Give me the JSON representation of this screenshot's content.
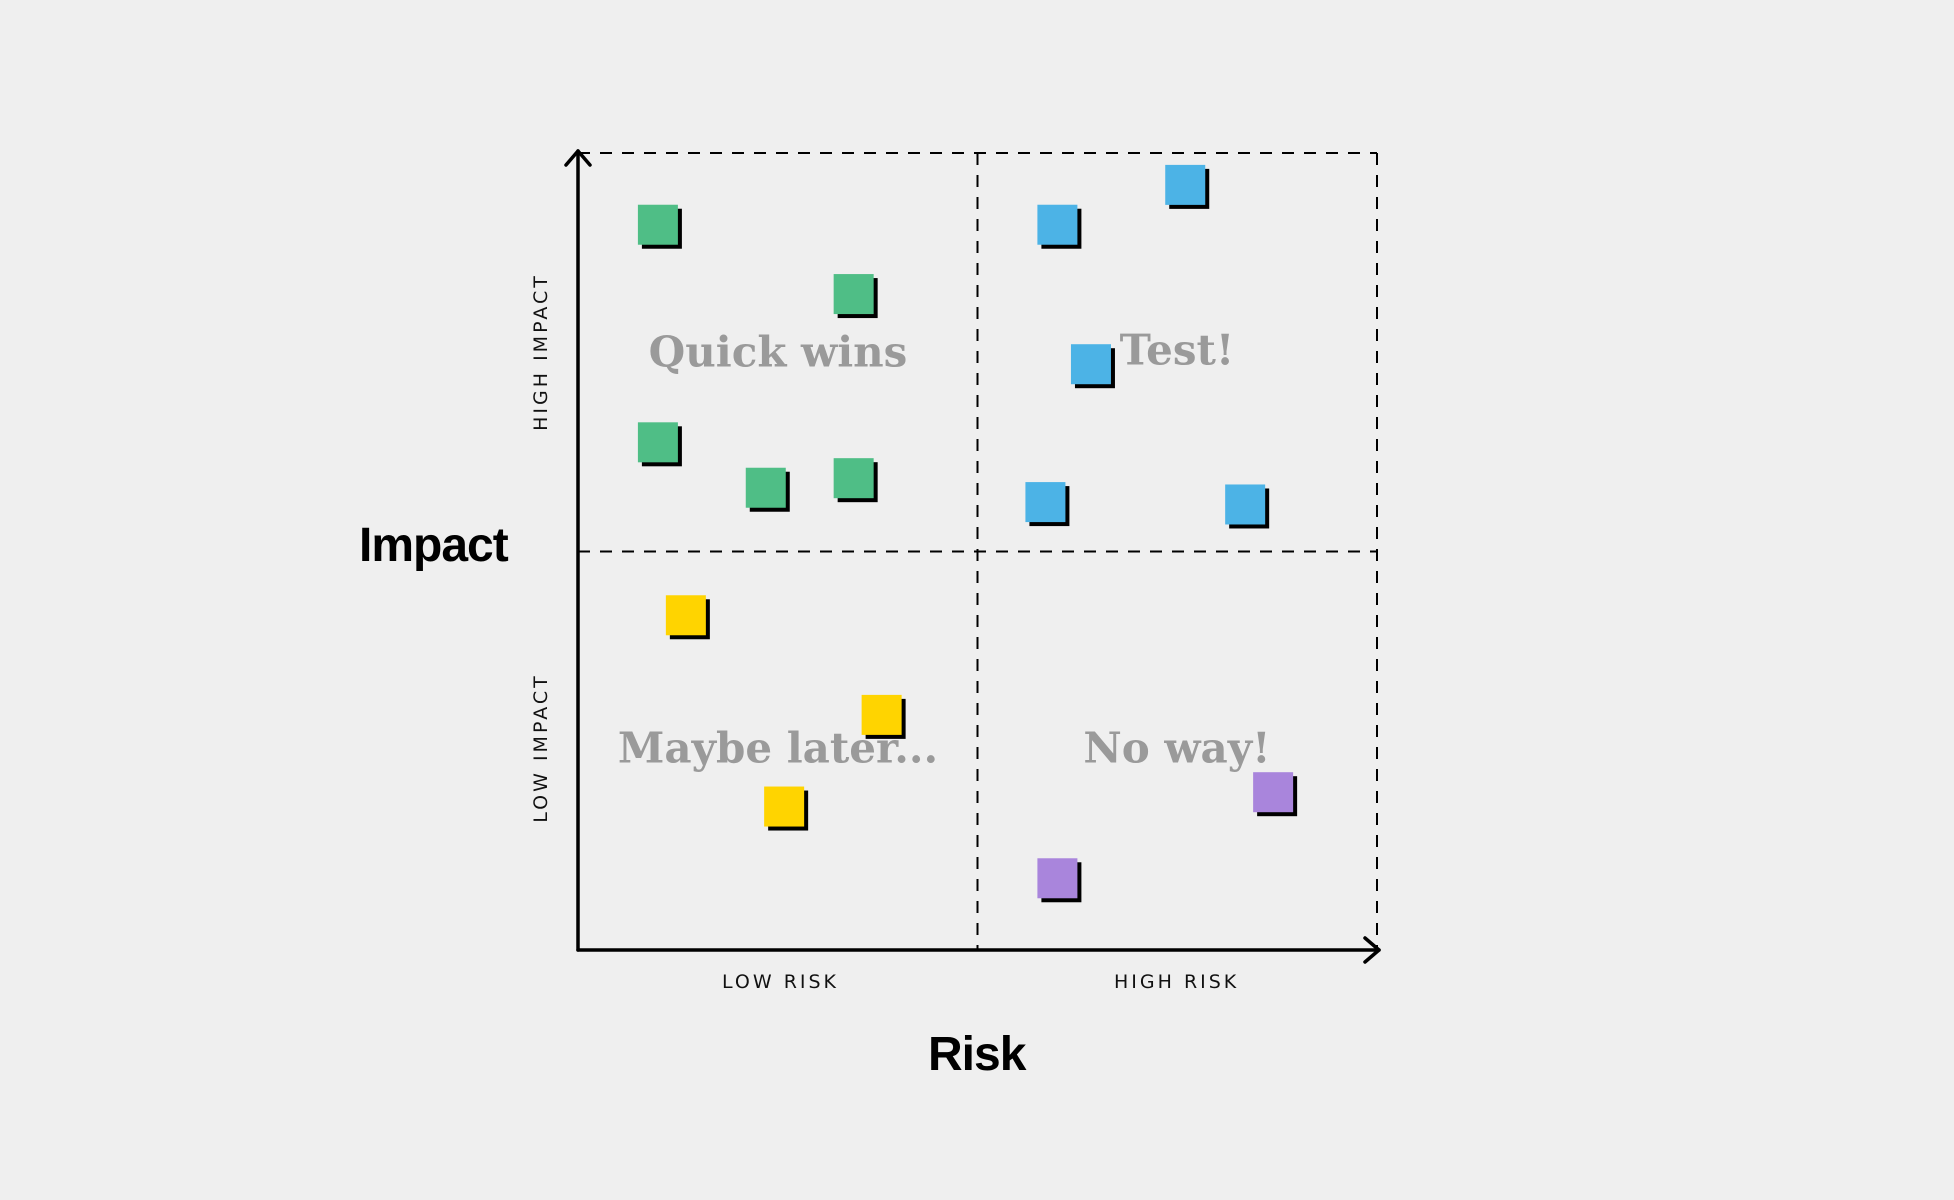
{
  "axes": {
    "y_title": "Impact",
    "x_title": "Risk",
    "y_ticks": [
      "HIGH IMPACT",
      "LOW IMPACT"
    ],
    "x_ticks": [
      "LOW RISK",
      "HIGH RISK"
    ]
  },
  "quadrants": {
    "quick_wins": "Quick wins",
    "test": "Test!",
    "maybe_later": "Maybe later...",
    "no_way": "No way!"
  },
  "colors": {
    "background": "#efefef",
    "axis": "#000000",
    "quadrant_label": "#9a9a9a",
    "sticky_shadow": "#000000",
    "quick_wins": "#4fbe86",
    "test": "#4cb3e6",
    "maybe_later": "#ffd400",
    "no_way": "#a985dc"
  },
  "chart_data": {
    "type": "scatter",
    "xlabel": "Risk",
    "ylabel": "Impact",
    "xlim": [
      0,
      1
    ],
    "ylim": [
      0,
      1
    ],
    "grid": "dashed quadrant divider",
    "series": [
      {
        "name": "Quick wins",
        "color_key": "quick_wins",
        "points": [
          {
            "x": 0.1,
            "y": 0.91
          },
          {
            "x": 0.345,
            "y": 0.823
          },
          {
            "x": 0.1,
            "y": 0.637
          },
          {
            "x": 0.235,
            "y": 0.58
          },
          {
            "x": 0.345,
            "y": 0.592
          }
        ]
      },
      {
        "name": "Test!",
        "color_key": "test",
        "points": [
          {
            "x": 0.6,
            "y": 0.91
          },
          {
            "x": 0.76,
            "y": 0.96
          },
          {
            "x": 0.642,
            "y": 0.735
          },
          {
            "x": 0.585,
            "y": 0.562
          },
          {
            "x": 0.835,
            "y": 0.559
          }
        ]
      },
      {
        "name": "Maybe later...",
        "color_key": "maybe_later",
        "points": [
          {
            "x": 0.135,
            "y": 0.42
          },
          {
            "x": 0.38,
            "y": 0.295
          },
          {
            "x": 0.258,
            "y": 0.18
          }
        ]
      },
      {
        "name": "No way!",
        "color_key": "no_way",
        "points": [
          {
            "x": 0.87,
            "y": 0.198
          },
          {
            "x": 0.6,
            "y": 0.09
          }
        ]
      }
    ]
  }
}
